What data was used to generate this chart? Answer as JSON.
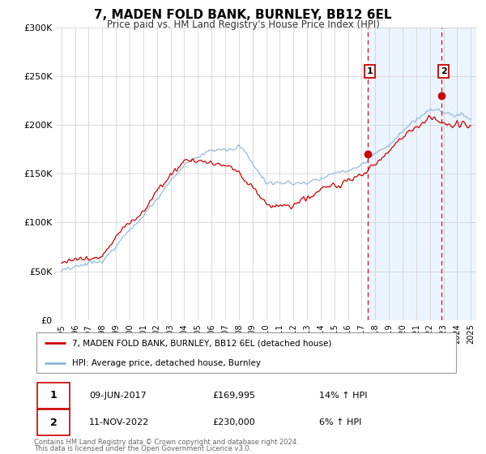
{
  "title": "7, MADEN FOLD BANK, BURNLEY, BB12 6EL",
  "subtitle": "Price paid vs. HM Land Registry's House Price Index (HPI)",
  "ylim": [
    0,
    300000
  ],
  "xlim_start": 1994.6,
  "xlim_end": 2025.4,
  "yticks": [
    0,
    50000,
    100000,
    150000,
    200000,
    250000,
    300000
  ],
  "ytick_labels": [
    "£0",
    "£50K",
    "£100K",
    "£150K",
    "£200K",
    "£250K",
    "£300K"
  ],
  "xticks": [
    1995,
    1996,
    1997,
    1998,
    1999,
    2000,
    2001,
    2002,
    2003,
    2004,
    2005,
    2006,
    2007,
    2008,
    2009,
    2010,
    2011,
    2012,
    2013,
    2014,
    2015,
    2016,
    2017,
    2018,
    2019,
    2020,
    2021,
    2022,
    2023,
    2024,
    2025
  ],
  "hpi_color": "#89b4d9",
  "price_color": "#cc0000",
  "vline_color": "#cc0000",
  "sale1_x": 2017.44,
  "sale1_y": 169995,
  "sale2_x": 2022.86,
  "sale2_y": 230000,
  "legend_label_price": "7, MADEN FOLD BANK, BURNLEY, BB12 6EL (detached house)",
  "legend_label_hpi": "HPI: Average price, detached house, Burnley",
  "table_row1": [
    "1",
    "09-JUN-2017",
    "£169,995",
    "14% ↑ HPI"
  ],
  "table_row2": [
    "2",
    "11-NOV-2022",
    "£230,000",
    "6% ↑ HPI"
  ],
  "footnote1": "Contains HM Land Registry data © Crown copyright and database right 2024.",
  "footnote2": "This data is licensed under the Open Government Licence v3.0.",
  "bg_color": "#ffffff",
  "grid_color": "#cccccc",
  "shade_color": "#ddeeff"
}
